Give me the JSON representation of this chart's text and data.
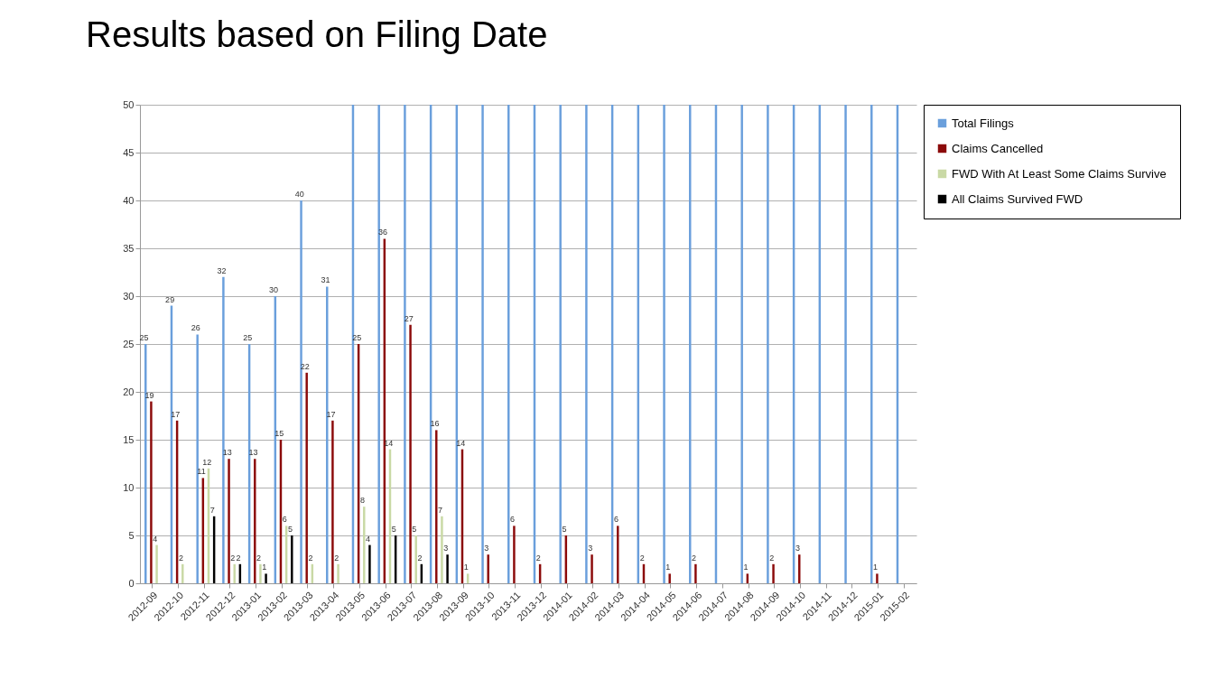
{
  "chart_data": {
    "type": "bar",
    "title": "Results based on Filing Date",
    "categories": [
      "2012-09",
      "2012-10",
      "2012-11",
      "2012-12",
      "2013-01",
      "2013-02",
      "2013-03",
      "2013-04",
      "2013-05",
      "2013-06",
      "2013-07",
      "2013-08",
      "2013-09",
      "2013-10",
      "2013-11",
      "2013-12",
      "2014-01",
      "2014-02",
      "2014-03",
      "2014-04",
      "2014-05",
      "2014-06",
      "2014-07",
      "2014-08",
      "2014-09",
      "2014-10",
      "2014-11",
      "2014-12",
      "2015-01",
      "2015-02"
    ],
    "series": [
      {
        "name": "Total Filings",
        "color": "#6a9fdc",
        "values": [
          25,
          29,
          26,
          32,
          25,
          30,
          40,
          31,
          50,
          50,
          50,
          50,
          50,
          50,
          50,
          50,
          50,
          50,
          50,
          50,
          50,
          50,
          50,
          50,
          50,
          50,
          50,
          50,
          50,
          50
        ],
        "value_labels": [
          "25",
          "29",
          "26",
          "32",
          "25",
          "30",
          "40",
          "31",
          null,
          null,
          null,
          null,
          null,
          null,
          null,
          null,
          null,
          null,
          null,
          null,
          null,
          null,
          null,
          null,
          null,
          null,
          null,
          null,
          null,
          null
        ]
      },
      {
        "name": "Claims Cancelled",
        "color": "#8b0a0a",
        "values": [
          19,
          17,
          11,
          13,
          13,
          15,
          22,
          17,
          25,
          36,
          27,
          16,
          14,
          3,
          6,
          2,
          5,
          3,
          6,
          2,
          1,
          2,
          null,
          1,
          2,
          3,
          null,
          null,
          1,
          null
        ],
        "value_labels": [
          "19",
          "17",
          "11",
          "13",
          "13",
          "15",
          "22",
          "17",
          "25",
          "36",
          "27",
          "16",
          "14",
          "3",
          "6",
          "2",
          "5",
          "3",
          "6",
          "2",
          "1",
          "2",
          null,
          "1",
          "2",
          "3",
          null,
          null,
          "1",
          null
        ]
      },
      {
        "name": "FWD With At Least Some Claims Survive",
        "color": "#c9d9a5",
        "values": [
          4,
          2,
          12,
          2,
          2,
          6,
          2,
          2,
          8,
          14,
          5,
          7,
          1,
          null,
          null,
          null,
          null,
          null,
          null,
          null,
          null,
          null,
          null,
          null,
          null,
          null,
          null,
          null,
          null,
          null
        ],
        "value_labels": [
          "4",
          "2",
          "12",
          "2",
          "2",
          "6",
          "2",
          "2",
          "8",
          "14",
          "5",
          "7",
          "1",
          null,
          null,
          null,
          null,
          null,
          null,
          null,
          null,
          null,
          null,
          null,
          null,
          null,
          null,
          null,
          null,
          null
        ]
      },
      {
        "name": "All Claims Survived FWD",
        "color": "#000000",
        "values": [
          null,
          null,
          7,
          2,
          1,
          5,
          null,
          null,
          4,
          5,
          2,
          3,
          null,
          null,
          null,
          null,
          null,
          null,
          null,
          null,
          null,
          null,
          null,
          null,
          null,
          null,
          null,
          null,
          null,
          null
        ],
        "value_labels": [
          null,
          null,
          "7",
          "2",
          "1",
          "5",
          null,
          null,
          "4",
          "5",
          "2",
          "3",
          null,
          null,
          null,
          null,
          null,
          null,
          null,
          null,
          null,
          null,
          null,
          null,
          null,
          null,
          null,
          null,
          null,
          null
        ]
      }
    ],
    "ylim": [
      0,
      50
    ],
    "yticks": [
      0,
      5,
      10,
      15,
      20,
      25,
      30,
      35,
      40,
      45,
      50
    ],
    "grid": "y",
    "legend": "right"
  }
}
